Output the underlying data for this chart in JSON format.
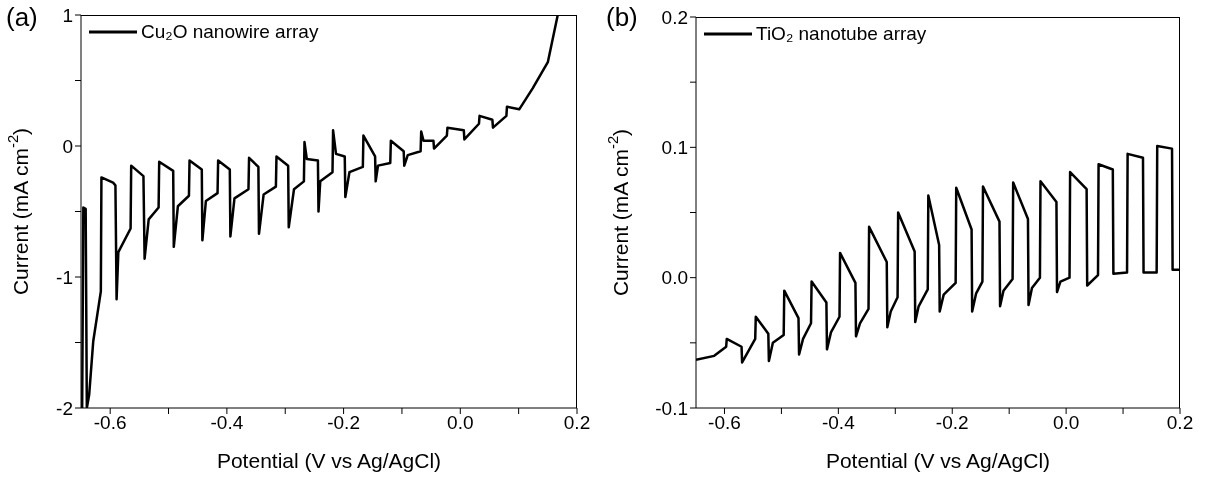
{
  "chart_data": [
    {
      "type": "line",
      "annotations": [
        "(a)"
      ],
      "xlabel": "Potential (V vs Ag/AgCl)",
      "ylabel": "Current (mA cm$^{-2}$)",
      "legend": "top left",
      "marker": "none",
      "line_style": "solid",
      "xlim": [
        -0.65,
        0.2
      ],
      "xticks": [
        -0.6,
        {
          "value": -0.5,
          "label": null
        },
        -0.4,
        {
          "value": -0.3,
          "label": null
        },
        -0.2,
        {
          "value": -0.1,
          "label": null
        },
        {
          "value": 0,
          "label": "0.0"
        },
        {
          "value": 0.1,
          "label": null
        },
        0.2
      ],
      "ylim": [
        -2,
        1
      ],
      "yticks": [
        -2,
        {
          "value": -1.5,
          "label": null
        },
        -1,
        {
          "value": -0.5,
          "label": null
        },
        0,
        {
          "value": 0.5,
          "label": null
        },
        1
      ],
      "series": [
        {
          "name": "Cu₂O nanowire array",
          "color": "#000000",
          "x": [
            -0.648,
            -0.646,
            -0.642,
            -0.64,
            -0.636,
            -0.629,
            -0.616,
            -0.615,
            -0.595,
            -0.591,
            -0.589,
            -0.586,
            -0.565,
            -0.564,
            -0.543,
            -0.541,
            -0.534,
            -0.517,
            -0.516,
            -0.492,
            -0.491,
            -0.484,
            -0.465,
            -0.464,
            -0.443,
            -0.442,
            -0.436,
            -0.416,
            -0.415,
            -0.395,
            -0.394,
            -0.387,
            -0.363,
            -0.362,
            -0.346,
            -0.345,
            -0.337,
            -0.316,
            -0.315,
            -0.295,
            -0.294,
            -0.285,
            -0.268,
            -0.267,
            -0.263,
            -0.244,
            -0.243,
            -0.24,
            -0.219,
            -0.218,
            -0.213,
            -0.198,
            -0.197,
            -0.19,
            -0.167,
            -0.166,
            -0.146,
            -0.145,
            -0.141,
            -0.12,
            -0.119,
            -0.097,
            -0.096,
            -0.09,
            -0.068,
            -0.067,
            -0.063,
            -0.046,
            -0.045,
            -0.023,
            -0.022,
            0.006,
            0.007,
            0.032,
            0.033,
            0.055,
            0.056,
            0.079,
            0.08,
            0.101,
            0.124,
            0.15,
            0.167
          ],
          "values": [
            -2,
            -0.47,
            -0.48,
            -2,
            -1.9,
            -1.49,
            -1.11,
            -0.24,
            -0.28,
            -0.3,
            -1.17,
            -0.81,
            -0.63,
            -0.15,
            -0.23,
            -0.86,
            -0.56,
            -0.47,
            -0.12,
            -0.19,
            -0.77,
            -0.46,
            -0.38,
            -0.11,
            -0.18,
            -0.72,
            -0.42,
            -0.36,
            -0.11,
            -0.18,
            -0.69,
            -0.4,
            -0.33,
            -0.09,
            -0.16,
            -0.67,
            -0.37,
            -0.31,
            -0.08,
            -0.15,
            -0.62,
            -0.33,
            -0.27,
            0.03,
            -0.1,
            -0.11,
            -0.5,
            -0.27,
            -0.2,
            0.12,
            -0.06,
            -0.08,
            -0.39,
            -0.2,
            -0.16,
            0.08,
            -0.08,
            -0.27,
            -0.15,
            -0.13,
            0.04,
            -0.04,
            -0.15,
            -0.07,
            -0.04,
            0.11,
            0.04,
            0.04,
            -0.02,
            0.08,
            0.14,
            0.12,
            0.05,
            0.17,
            0.23,
            0.2,
            0.14,
            0.23,
            0.3,
            0.28,
            0.44,
            0.64,
            1.0
          ]
        }
      ]
    },
    {
      "type": "line",
      "annotations": [
        "(b)"
      ],
      "xlabel": "Potential (V vs Ag/AgCl)",
      "ylabel": "Current (mA cm$^{-2}$)",
      "legend": "top left",
      "marker": "none",
      "line_style": "solid",
      "xlim": [
        -0.65,
        0.2
      ],
      "xticks": [
        -0.6,
        {
          "value": -0.5,
          "label": null
        },
        -0.4,
        {
          "value": -0.3,
          "label": null
        },
        -0.2,
        {
          "value": -0.1,
          "label": null
        },
        {
          "value": 0,
          "label": "0.0"
        },
        {
          "value": 0.1,
          "label": null
        },
        0.2
      ],
      "ylim": [
        -0.1,
        0.2
      ],
      "yticks": [
        -0.1,
        {
          "value": -0.05,
          "label": null
        },
        {
          "value": 0,
          "label": "0.0"
        },
        {
          "value": 0.05,
          "label": null
        },
        0.1,
        {
          "value": 0.15,
          "label": null
        },
        0.2
      ],
      "series": [
        {
          "name": "TiO₂ nanotube array",
          "color": "#000000",
          "x": [
            -0.65,
            -0.618,
            -0.597,
            -0.596,
            -0.57,
            -0.569,
            -0.546,
            -0.545,
            -0.523,
            -0.522,
            -0.515,
            -0.496,
            -0.495,
            -0.47,
            -0.469,
            -0.462,
            -0.448,
            -0.447,
            -0.421,
            -0.42,
            -0.413,
            -0.398,
            -0.397,
            -0.37,
            -0.369,
            -0.362,
            -0.347,
            -0.346,
            -0.315,
            -0.314,
            -0.308,
            -0.296,
            -0.295,
            -0.266,
            -0.265,
            -0.259,
            -0.243,
            -0.242,
            -0.223,
            -0.222,
            -0.215,
            -0.194,
            -0.193,
            -0.166,
            -0.165,
            -0.158,
            -0.147,
            -0.146,
            -0.117,
            -0.116,
            -0.11,
            -0.094,
            -0.093,
            -0.067,
            -0.066,
            -0.06,
            -0.046,
            -0.045,
            -0.017,
            -0.016,
            -0.01,
            0.006,
            0.007,
            0.036,
            0.037,
            0.056,
            0.057,
            0.082,
            0.083,
            0.107,
            0.108,
            0.135,
            0.136,
            0.159,
            0.16,
            0.186,
            0.187,
            0.2
          ],
          "values": [
            -0.063,
            -0.06,
            -0.053,
            -0.047,
            -0.053,
            -0.065,
            -0.047,
            -0.03,
            -0.043,
            -0.064,
            -0.05,
            -0.044,
            -0.01,
            -0.031,
            -0.059,
            -0.047,
            -0.035,
            -0.003,
            -0.019,
            -0.055,
            -0.042,
            -0.03,
            0.019,
            -0.004,
            -0.045,
            -0.035,
            -0.024,
            0.039,
            0.012,
            -0.038,
            -0.026,
            -0.015,
            0.05,
            0.02,
            -0.034,
            -0.022,
            -0.009,
            0.063,
            0.025,
            -0.026,
            -0.013,
            -0.004,
            0.069,
            0.037,
            -0.026,
            -0.012,
            -0.003,
            0.07,
            0.043,
            -0.022,
            -0.01,
            -0.001,
            0.073,
            0.045,
            -0.021,
            -0.008,
            0,
            0.074,
            0.058,
            -0.011,
            -0.003,
            0,
            0.081,
            0.068,
            -0.006,
            0.002,
            0.087,
            0.083,
            0.003,
            0.004,
            0.095,
            0.092,
            0.004,
            0.004,
            0.101,
            0.099,
            0.006,
            0.006
          ]
        }
      ]
    }
  ]
}
